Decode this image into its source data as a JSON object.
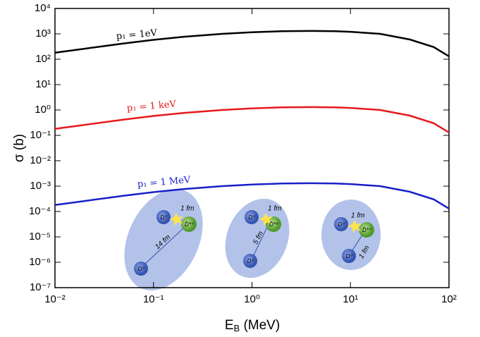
{
  "chart_data": {
    "type": "line",
    "ylabel": "σ (b)",
    "xlabel": [
      "E",
      "B",
      " (MeV)"
    ],
    "x": [
      0.01,
      0.02,
      0.05,
      0.1,
      0.2,
      0.5,
      1,
      2,
      4,
      7,
      10,
      20,
      40,
      70,
      100
    ],
    "series": [
      {
        "name": "p₁ = 1eV",
        "color": "#000000",
        "values": [
          180,
          260,
          420,
          580,
          760,
          1000,
          1150,
          1270,
          1300,
          1270,
          1200,
          1000,
          600,
          300,
          130
        ]
      },
      {
        "name": "p₁ = 1 keV",
        "color": "#e8191b",
        "values": [
          0.18,
          0.26,
          0.42,
          0.58,
          0.76,
          1.0,
          1.15,
          1.27,
          1.3,
          1.27,
          1.2,
          1.0,
          0.6,
          0.3,
          0.13
        ]
      },
      {
        "name": "p₁ = 1 MeV",
        "color": "#1720c8",
        "values": [
          0.00018,
          0.00026,
          0.00042,
          0.00058,
          0.00076,
          0.001,
          0.00115,
          0.00127,
          0.0013,
          0.00127,
          0.0012,
          0.001,
          0.0006,
          0.0003,
          0.00013
        ]
      }
    ],
    "xscale": "log",
    "yscale": "log",
    "xlim": [
      0.01,
      100
    ],
    "ylim": [
      1e-07,
      10000
    ],
    "xticks": [
      {
        "value": 0.01,
        "label": "10⁻²"
      },
      {
        "value": 0.1,
        "label": "10⁻¹"
      },
      {
        "value": 1,
        "label": "10⁰"
      },
      {
        "value": 10,
        "label": "10¹"
      },
      {
        "value": 100,
        "label": "10²"
      }
    ],
    "yticks": [
      {
        "value": 1e-07,
        "label": "10⁻⁷"
      },
      {
        "value": 1e-06,
        "label": "10⁻⁶"
      },
      {
        "value": 1e-05,
        "label": "10⁻⁵"
      },
      {
        "value": 0.0001,
        "label": "10⁻⁴"
      },
      {
        "value": 0.001,
        "label": "10⁻³"
      },
      {
        "value": 0.01,
        "label": "10⁻²"
      },
      {
        "value": 0.1,
        "label": "10⁻¹"
      },
      {
        "value": 1,
        "label": "10⁰"
      },
      {
        "value": 10,
        "label": "10¹"
      },
      {
        "value": 100,
        "label": "10²"
      },
      {
        "value": 1000,
        "label": "10³"
      },
      {
        "value": 10000,
        "label": "10⁴"
      }
    ],
    "grid": false,
    "inset": [
      [
        "1 fm",
        "14 fm",
        "D⁰",
        "D̄*⁰",
        "D⁰"
      ],
      [
        "1 fm",
        "5 fm",
        "D⁰",
        "D̄*⁰",
        "D⁰"
      ],
      [
        "1 fm",
        "1 fm",
        "D⁰",
        "D̄*⁰",
        "D⁰"
      ]
    ]
  }
}
